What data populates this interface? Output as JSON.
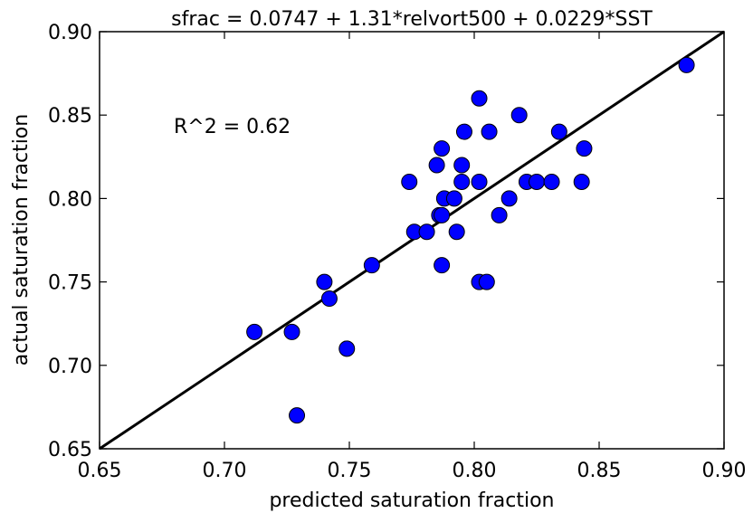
{
  "chart_data": {
    "type": "scatter",
    "title": "sfrac = 0.0747 + 1.31*relvort500 + 0.0229*SST",
    "xlabel": "predicted saturation fraction",
    "ylabel": "actual saturation fraction",
    "xlim": [
      0.65,
      0.9
    ],
    "ylim": [
      0.65,
      0.9
    ],
    "xticks": [
      "0.65",
      "0.70",
      "0.75",
      "0.80",
      "0.85",
      "0.90"
    ],
    "yticks": [
      "0.65",
      "0.70",
      "0.75",
      "0.80",
      "0.85",
      "0.90"
    ],
    "grid": false,
    "annotation": "R^2 = 0.62",
    "reference_line": {
      "x": [
        0.65,
        0.9
      ],
      "y": [
        0.65,
        0.9
      ],
      "color": "#000000"
    },
    "marker_color": "#0000ff",
    "points": [
      {
        "x": 0.712,
        "y": 0.72
      },
      {
        "x": 0.727,
        "y": 0.72
      },
      {
        "x": 0.729,
        "y": 0.67
      },
      {
        "x": 0.74,
        "y": 0.75
      },
      {
        "x": 0.742,
        "y": 0.74
      },
      {
        "x": 0.749,
        "y": 0.71
      },
      {
        "x": 0.759,
        "y": 0.76
      },
      {
        "x": 0.774,
        "y": 0.81
      },
      {
        "x": 0.776,
        "y": 0.78
      },
      {
        "x": 0.781,
        "y": 0.78
      },
      {
        "x": 0.785,
        "y": 0.82
      },
      {
        "x": 0.786,
        "y": 0.79
      },
      {
        "x": 0.787,
        "y": 0.83
      },
      {
        "x": 0.787,
        "y": 0.76
      },
      {
        "x": 0.787,
        "y": 0.79
      },
      {
        "x": 0.788,
        "y": 0.8
      },
      {
        "x": 0.792,
        "y": 0.8
      },
      {
        "x": 0.793,
        "y": 0.78
      },
      {
        "x": 0.795,
        "y": 0.81
      },
      {
        "x": 0.795,
        "y": 0.82
      },
      {
        "x": 0.796,
        "y": 0.84
      },
      {
        "x": 0.802,
        "y": 0.86
      },
      {
        "x": 0.802,
        "y": 0.81
      },
      {
        "x": 0.802,
        "y": 0.75
      },
      {
        "x": 0.805,
        "y": 0.75
      },
      {
        "x": 0.806,
        "y": 0.84
      },
      {
        "x": 0.81,
        "y": 0.79
      },
      {
        "x": 0.814,
        "y": 0.8
      },
      {
        "x": 0.818,
        "y": 0.85
      },
      {
        "x": 0.821,
        "y": 0.81
      },
      {
        "x": 0.825,
        "y": 0.81
      },
      {
        "x": 0.831,
        "y": 0.81
      },
      {
        "x": 0.834,
        "y": 0.84
      },
      {
        "x": 0.843,
        "y": 0.81
      },
      {
        "x": 0.844,
        "y": 0.83
      },
      {
        "x": 0.885,
        "y": 0.88
      }
    ]
  }
}
